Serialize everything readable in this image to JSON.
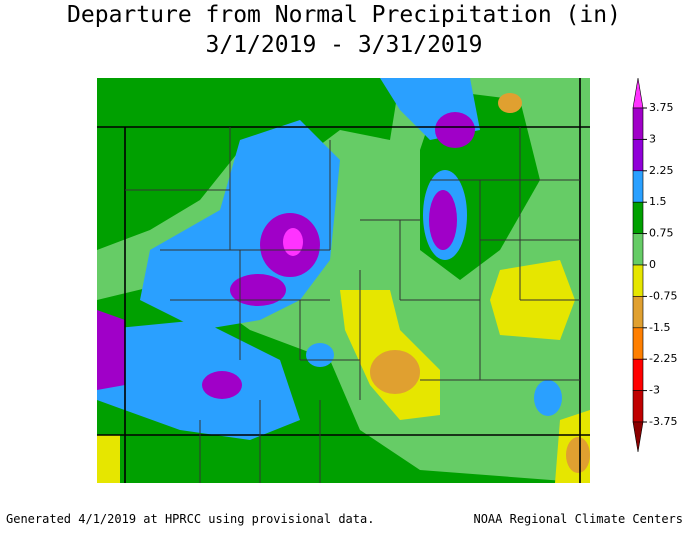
{
  "header": {
    "title": "Departure from Normal Precipitation (in)",
    "subtitle": "3/1/2019 - 3/31/2019"
  },
  "legend": {
    "ticks": [
      3.75,
      3,
      2.25,
      1.5,
      0.75,
      0,
      -0.75,
      -1.5,
      -2.25,
      -3,
      -3.75
    ],
    "colors": [
      "#ff33ff",
      "#a000c8",
      "#9000d8",
      "#2aa0ff",
      "#00a000",
      "#66cc66",
      "#e6e600",
      "#e0a030",
      "#ff7f00",
      "#ff0000",
      "#c00000",
      "#8b0000"
    ]
  },
  "footer": {
    "left": "Generated 4/1/2019 at HPRCC using provisional data.",
    "right": "NOAA Regional Climate Centers"
  }
}
